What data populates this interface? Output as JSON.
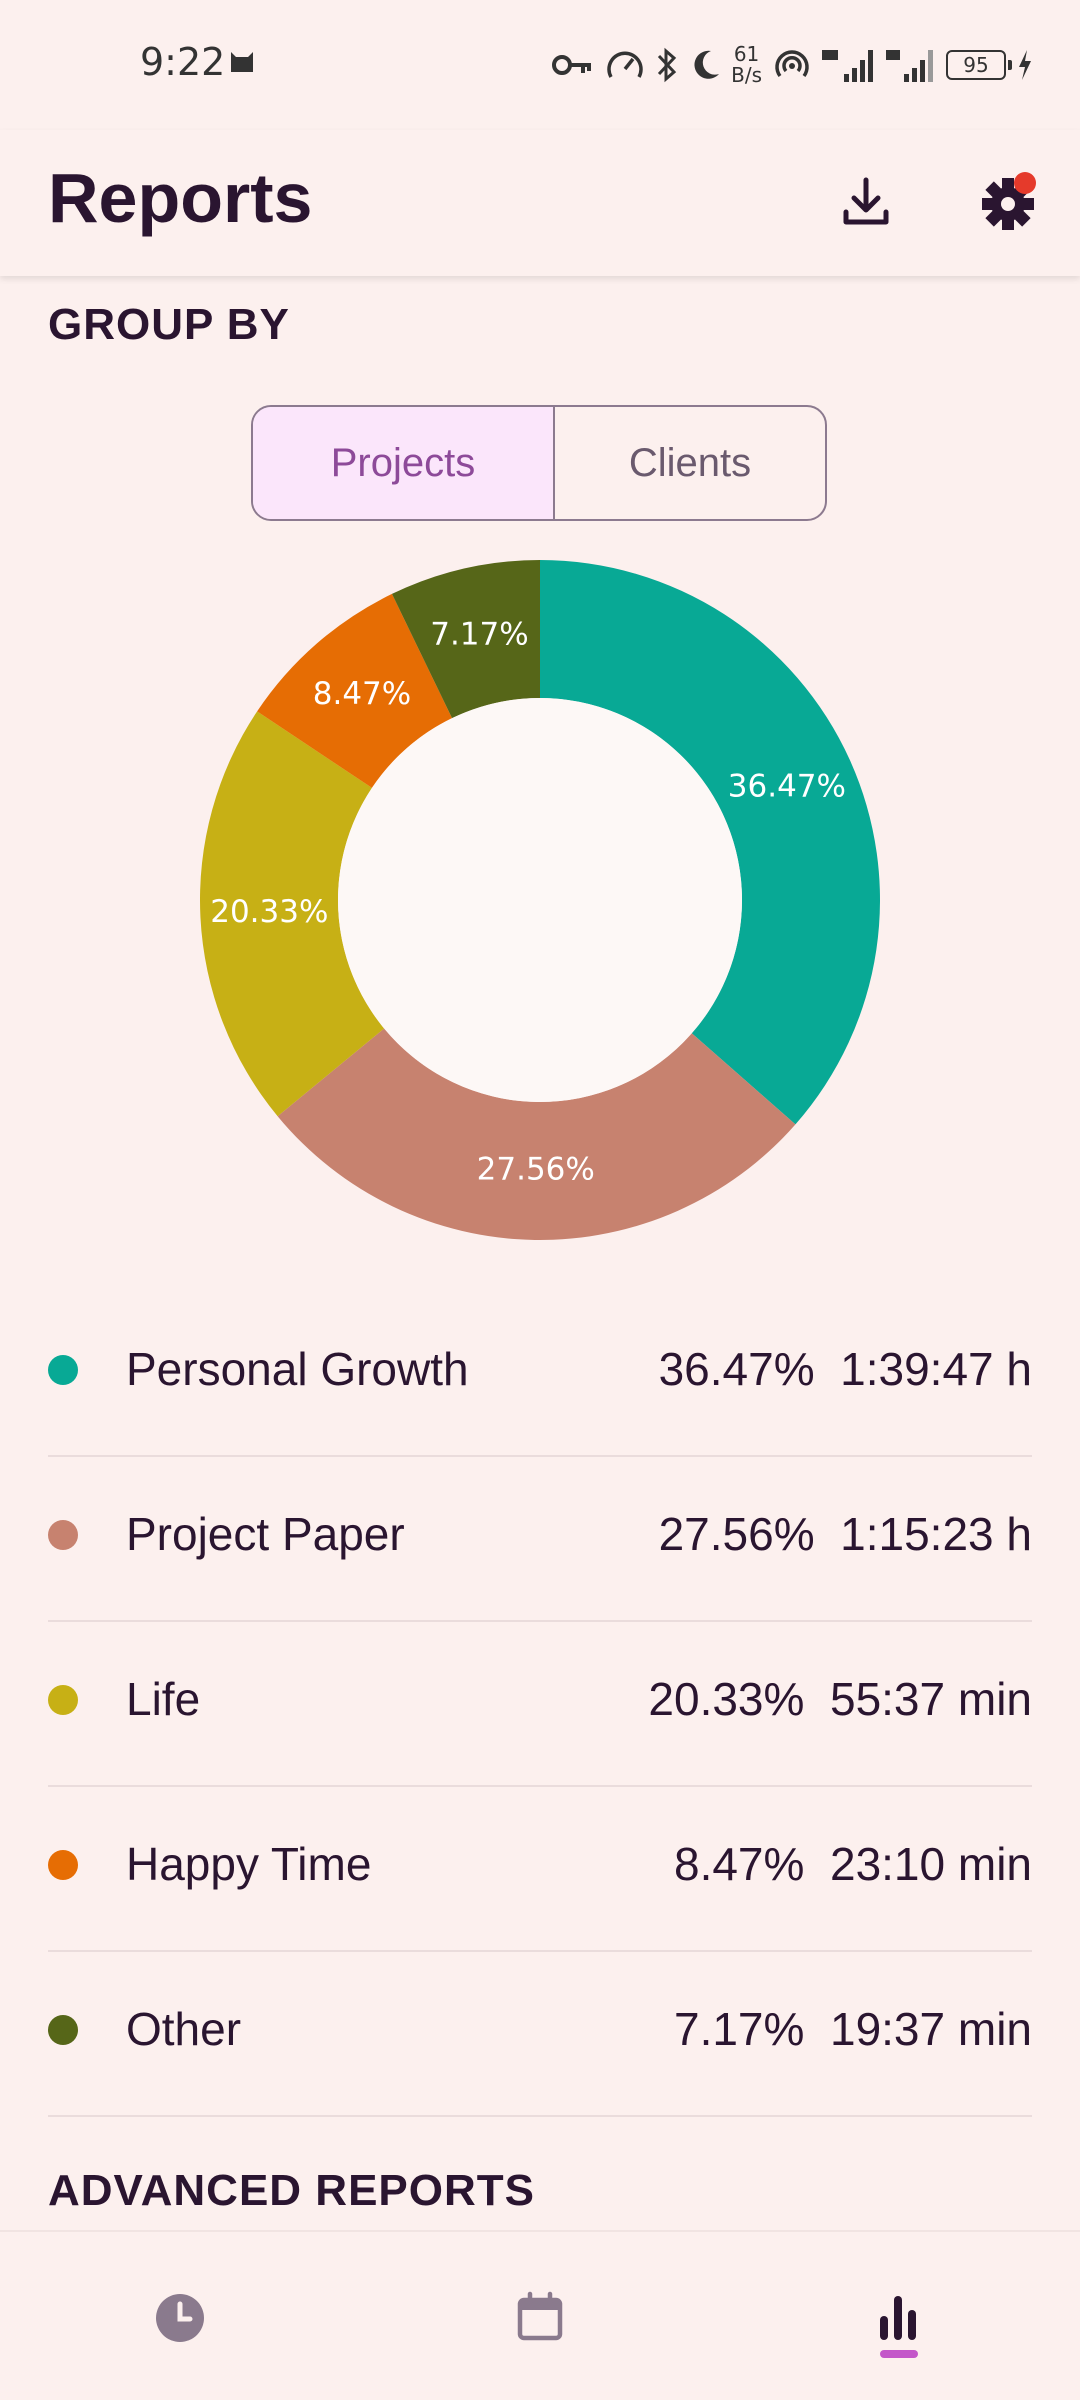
{
  "status_bar": {
    "time": "9:22",
    "net_speed_value": "61",
    "net_speed_unit": "B/s",
    "battery": "95"
  },
  "app_bar": {
    "title": "Reports",
    "download_icon": "download-icon",
    "settings_icon": "gear-icon"
  },
  "group_by": {
    "title": "GROUP BY",
    "options": [
      "Projects",
      "Clients"
    ],
    "selected": "Projects"
  },
  "chart_data": {
    "type": "pie",
    "style": "donut",
    "categories": [
      "Personal Growth",
      "Project Paper",
      "Life",
      "Happy Time",
      "Other"
    ],
    "values": [
      36.47,
      27.56,
      20.33,
      8.47,
      7.17
    ],
    "labels": [
      "36.47%",
      "27.56%",
      "20.33%",
      "8.47%",
      "7.17%"
    ],
    "colors": [
      "#08a995",
      "#c7826f",
      "#c7b015",
      "#e66d04",
      "#566618"
    ]
  },
  "legend": [
    {
      "label": "Personal Growth",
      "percent": "36.47%",
      "duration": "1:39:47 h",
      "color": "#08a995"
    },
    {
      "label": "Project Paper",
      "percent": "27.56%",
      "duration": "1:15:23 h",
      "color": "#c7826f"
    },
    {
      "label": "Life",
      "percent": "20.33%",
      "duration": "55:37 min",
      "color": "#c7b015"
    },
    {
      "label": "Happy Time",
      "percent": "8.47%",
      "duration": "23:10 min",
      "color": "#e66d04"
    },
    {
      "label": "Other",
      "percent": "7.17%",
      "duration": "19:37 min",
      "color": "#566618"
    }
  ],
  "advanced": {
    "title": "ADVANCED REPORTS"
  },
  "bottom_nav": {
    "items": [
      "timer-icon",
      "calendar-icon",
      "bar-chart-icon"
    ],
    "active": "bar-chart-icon"
  }
}
